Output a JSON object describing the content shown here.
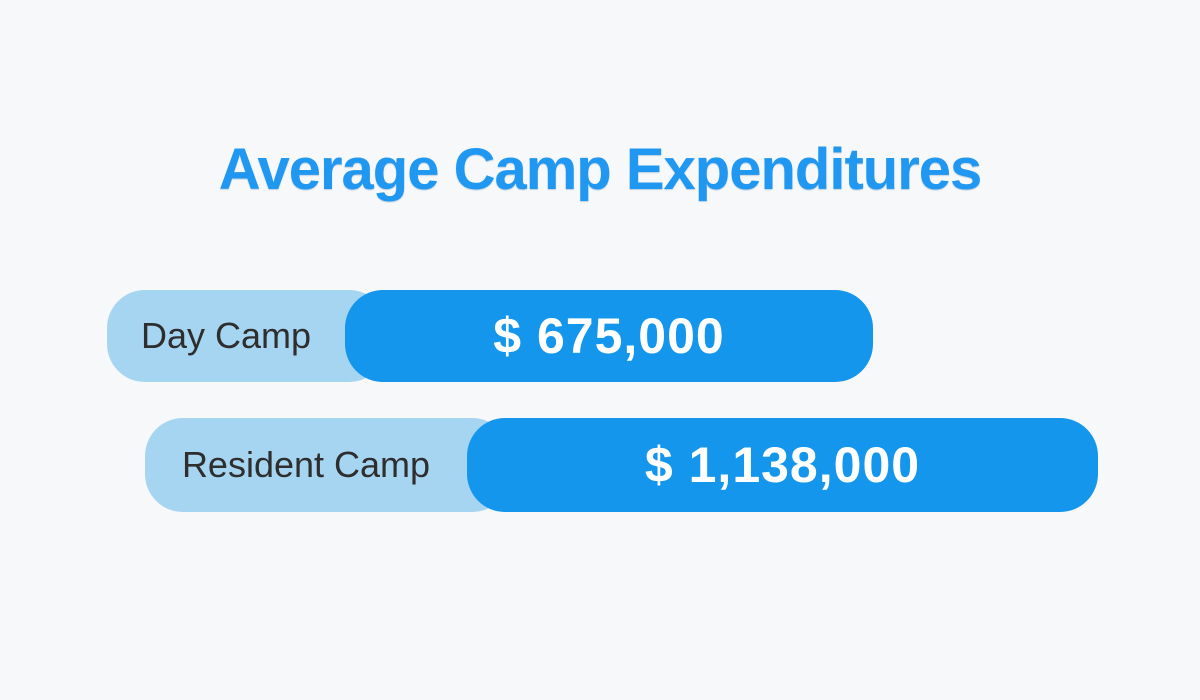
{
  "page": {
    "background_color": "#f6f8f9"
  },
  "chart_data": {
    "type": "bar",
    "orientation": "horizontal",
    "title": "Average Camp Expenditures",
    "categories": [
      "Day Camp",
      "Resident Camp"
    ],
    "values": [
      675000,
      1138000
    ],
    "value_labels": [
      "$ 675,000",
      "$ 1,138,000"
    ],
    "xlabel": "",
    "ylabel": "",
    "legend": false,
    "grid": false,
    "colors": {
      "title_text": "#2097f0",
      "value_bar": "#1396eb",
      "label_pill": "#a6d5f2",
      "value_text": "#ffffff",
      "label_text": "#2e2e2e"
    }
  }
}
